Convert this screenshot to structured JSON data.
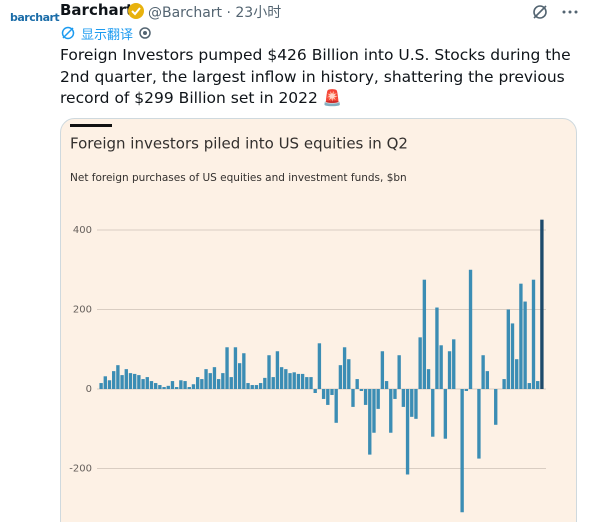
{
  "tweet": {
    "logo": "barchart",
    "name": "Barchart",
    "handle": "@Barchart",
    "time": "23小时",
    "translate": "显示翻译",
    "text": "Foreign Investors pumped $426 Billion into U.S. Stocks during the 2nd quarter, the largest inflow in history, shattering the previous record of $299 Billion set in 2022 🚨"
  },
  "chart_data": {
    "type": "bar",
    "title": "Foreign investors piled into US equities in Q2",
    "subtitle": "Net foreign purchases of US equities and investment funds, $bn",
    "values": [
      15,
      32,
      22,
      45,
      60,
      35,
      50,
      40,
      38,
      35,
      25,
      30,
      20,
      15,
      10,
      5,
      8,
      20,
      5,
      22,
      20,
      5,
      12,
      30,
      25,
      50,
      40,
      55,
      25,
      40,
      105,
      30,
      105,
      65,
      90,
      15,
      10,
      10,
      15,
      28,
      85,
      30,
      95,
      55,
      50,
      40,
      42,
      38,
      38,
      30,
      30,
      -10,
      115,
      -25,
      -40,
      -15,
      -85,
      60,
      105,
      75,
      -45,
      25,
      -5,
      -40,
      -165,
      -110,
      -50,
      95,
      20,
      -110,
      -25,
      85,
      -45,
      -215,
      -70,
      -75,
      130,
      275,
      50,
      -120,
      205,
      110,
      -125,
      95,
      125,
      0,
      -310,
      -5,
      300,
      0,
      -175,
      85,
      45,
      0,
      -90,
      0,
      25,
      200,
      165,
      75,
      265,
      220,
      15,
      275,
      20,
      426
    ],
    "color": "#3b8db4",
    "last_color": "#1d4a6b",
    "ylim": [
      -330,
      440
    ],
    "yticks": [
      -200,
      0,
      200,
      400
    ],
    "grid": true
  }
}
